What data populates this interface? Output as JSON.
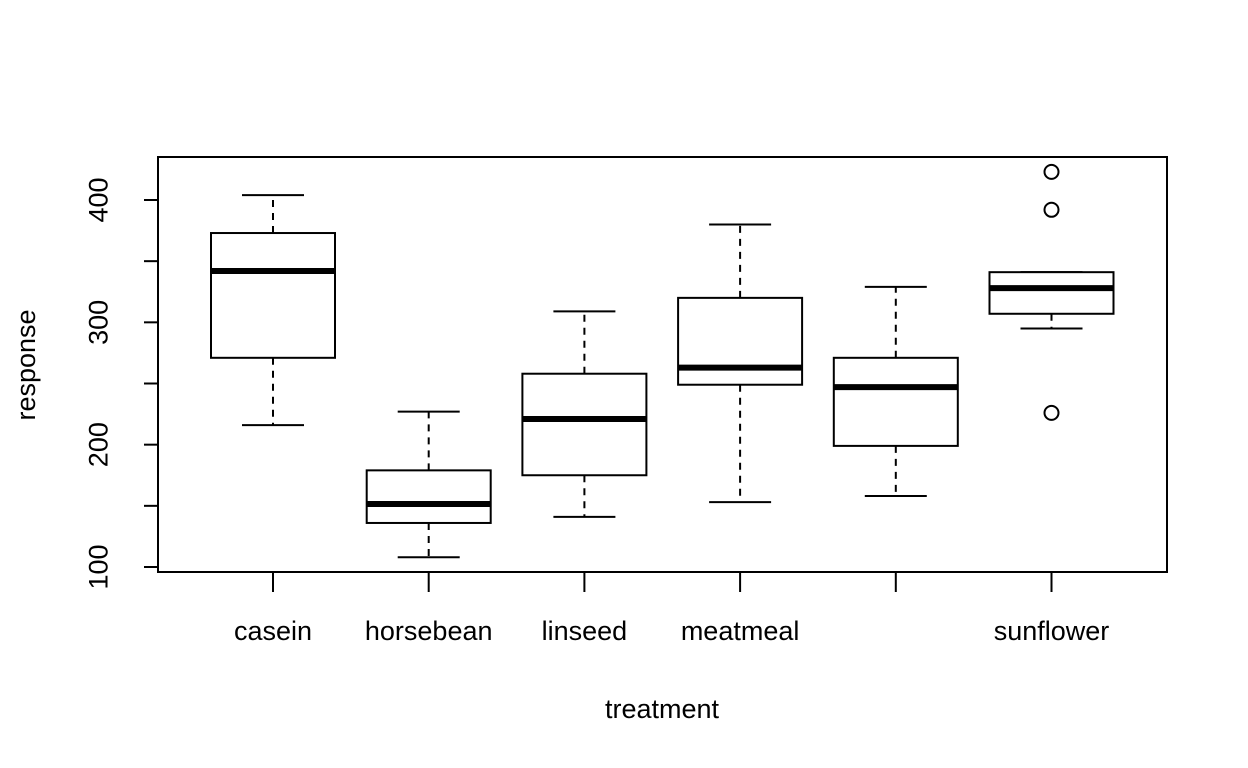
{
  "chart_data": {
    "type": "boxplot",
    "xlabel": "treatment",
    "ylabel": "response",
    "categories": [
      "casein",
      "horsebean",
      "linseed",
      "meatmeal",
      "",
      "sunflower"
    ],
    "ylim": [
      100,
      433
    ],
    "yticks": [
      100,
      150,
      200,
      250,
      300,
      350,
      400
    ],
    "ytick_labels": [
      "100",
      "",
      "200",
      "",
      "300",
      "",
      "400"
    ],
    "grid": false,
    "legend": "none",
    "boxes": [
      {
        "category": "casein",
        "whisker_low": 216,
        "q1": 271,
        "median": 342,
        "q3": 373,
        "whisker_high": 404,
        "outliers": []
      },
      {
        "category": "horsebean",
        "whisker_low": 108,
        "q1": 136,
        "median": 151.5,
        "q3": 179,
        "whisker_high": 227,
        "outliers": []
      },
      {
        "category": "linseed",
        "whisker_low": 141,
        "q1": 175,
        "median": 221,
        "q3": 258,
        "whisker_high": 309,
        "outliers": []
      },
      {
        "category": "meatmeal",
        "whisker_low": 153,
        "q1": 249,
        "median": 263,
        "q3": 320,
        "whisker_high": 380,
        "outliers": []
      },
      {
        "category": "",
        "whisker_low": 158,
        "q1": 199,
        "median": 247,
        "q3": 271,
        "whisker_high": 329,
        "outliers": []
      },
      {
        "category": "sunflower",
        "whisker_low": 295,
        "q1": 307,
        "median": 328,
        "q3": 341,
        "whisker_high": 341,
        "outliers": [
          226,
          392,
          423
        ]
      }
    ]
  }
}
